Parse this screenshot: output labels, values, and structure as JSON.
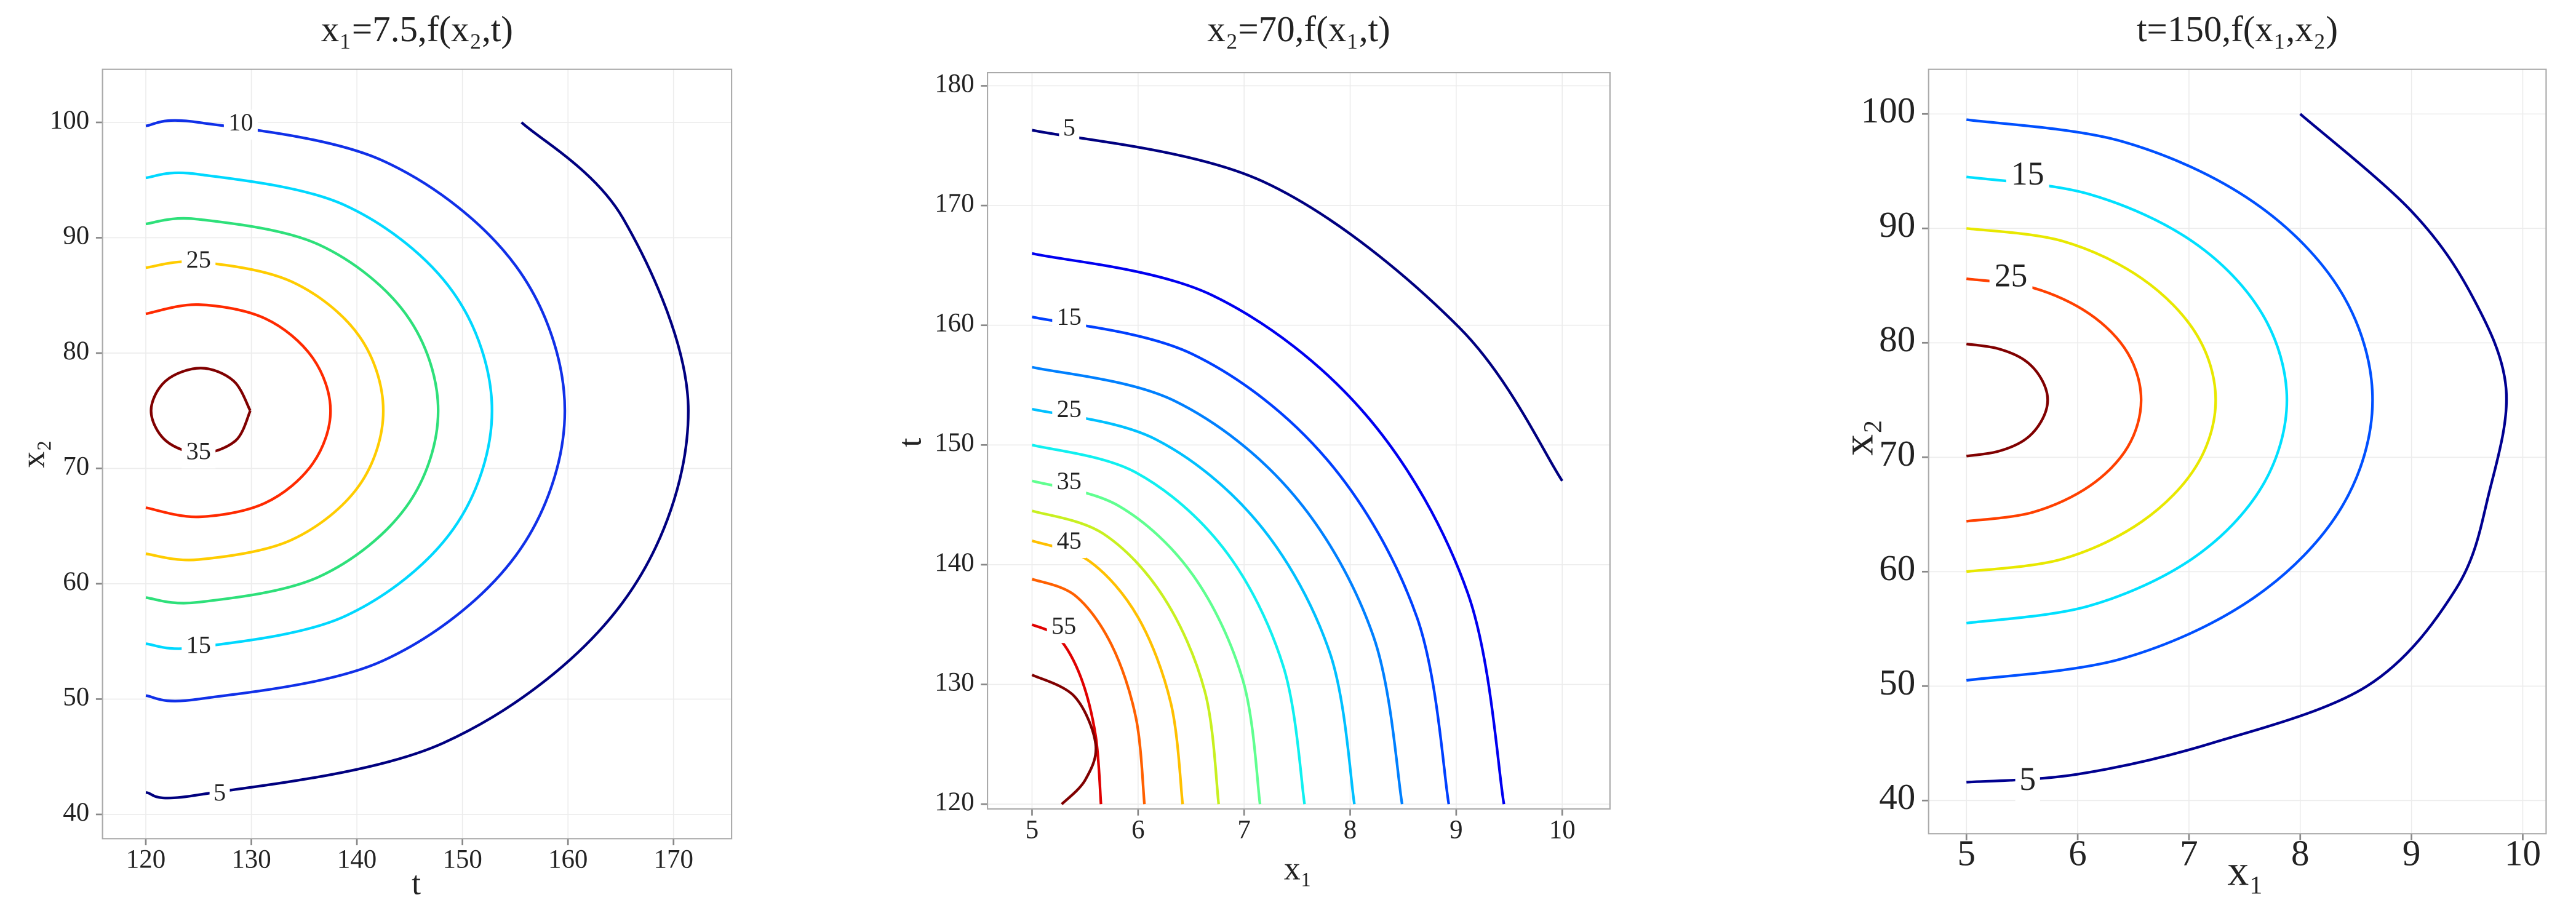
{
  "chart_data": [
    {
      "type": "contour",
      "title": "x₁=7.5,f(x₂,t)",
      "xlabel": "t",
      "ylabel": "x₂",
      "xlim": [
        115.9,
        175.5
      ],
      "ylim": [
        37.9,
        104.6
      ],
      "xticks": [
        120,
        130,
        140,
        150,
        160,
        170
      ],
      "yticks": [
        40,
        50,
        60,
        70,
        80,
        90,
        100
      ],
      "grid": true,
      "series": [
        {
          "color": "#800000",
          "x": [
            129.9,
            128.3,
            125.2,
            121.9,
            120.5,
            121.9,
            125.2,
            128.5,
            129.9
          ],
          "y": [
            75,
            77.6,
            78.7,
            77.6,
            75,
            72.4,
            71.3,
            72.4,
            75
          ]
        },
        {
          "color": "#ff2a00",
          "x": [
            120,
            125,
            131.3,
            135.8,
            137.5,
            135.8,
            131.3,
            125,
            120
          ],
          "y": [
            83.4,
            84.2,
            83.0,
            79.6,
            75,
            70.4,
            67.0,
            65.8,
            66.6
          ]
        },
        {
          "color": "#ffcc00",
          "x": [
            120,
            125,
            133.8,
            140.2,
            142.5,
            140.2,
            133.8,
            125,
            120
          ],
          "y": [
            87.4,
            87.9,
            86.2,
            81.5,
            75,
            68.5,
            63.8,
            62.1,
            62.6
          ]
        },
        {
          "color": "#2ee07a",
          "x": [
            120,
            125,
            136.4,
            144.7,
            147.7,
            144.7,
            136.4,
            125,
            120
          ],
          "y": [
            91.2,
            91.6,
            89.4,
            83.3,
            75,
            66.7,
            60.6,
            58.4,
            58.8
          ]
        },
        {
          "color": "#00d8ff",
          "x": [
            120,
            125,
            138.9,
            149.1,
            152.8,
            149.1,
            138.9,
            125,
            120
          ],
          "y": [
            95.2,
            95.5,
            92.8,
            85.3,
            75,
            64.7,
            57.2,
            54.5,
            54.8
          ]
        },
        {
          "color": "#1030e8",
          "x": [
            120,
            125,
            142.4,
            155.1,
            159.7,
            155.1,
            142.4,
            125,
            120
          ],
          "y": [
            99.7,
            100,
            96.7,
            87.5,
            75,
            62.5,
            53.3,
            50,
            50.3
          ]
        },
        {
          "color": "#00007f",
          "x": [
            155.6,
            165.2,
            171.4,
            165.2,
            148.2,
            125,
            120
          ],
          "y": [
            100,
            91.7,
            75,
            58.4,
            46.2,
            41.7,
            41.9
          ]
        }
      ],
      "labels": [
        {
          "text": 10,
          "x": 129,
          "y": 99.8
        },
        {
          "text": 25,
          "x": 125,
          "y": 87.9
        },
        {
          "text": 35,
          "x": 125,
          "y": 71.3
        },
        {
          "text": 15,
          "x": 125,
          "y": 54.5
        },
        {
          "text": 5,
          "x": 127,
          "y": 41.7
        }
      ]
    },
    {
      "type": "contour",
      "title": "x₂=70,f(x₁,t)",
      "xlabel": "x₁",
      "ylabel": "t",
      "xlim": [
        4.58,
        10.45
      ],
      "ylim": [
        119.6,
        181.1
      ],
      "xticks": [
        5,
        6,
        7,
        8,
        9,
        10
      ],
      "yticks": [
        120,
        130,
        140,
        150,
        160,
        170,
        180
      ],
      "grid": true,
      "series": [
        {
          "color": "#000080",
          "x": [
            5,
            7.18,
            9.03,
            10
          ],
          "y": [
            176.3,
            172,
            159.8,
            147
          ]
        },
        {
          "color": "#0000f0",
          "x": [
            5,
            6.7,
            8.15,
            9.11,
            9.45
          ],
          "y": [
            166,
            162.5,
            152.5,
            137.6,
            120
          ]
        },
        {
          "color": "#0040ff",
          "x": [
            5,
            6.51,
            7.78,
            8.63,
            8.93
          ],
          "y": [
            160.7,
            157.6,
            148.8,
            135.6,
            120
          ]
        },
        {
          "color": "#0080ff",
          "x": [
            5,
            6.34,
            7.47,
            8.22,
            8.49
          ],
          "y": [
            156.5,
            153.7,
            145.8,
            134,
            120
          ]
        },
        {
          "color": "#00c0ff",
          "x": [
            5,
            6.16,
            7.15,
            7.81,
            8.04
          ],
          "y": [
            153,
            150.5,
            143.3,
            132.6,
            120
          ]
        },
        {
          "color": "#10f0f0",
          "x": [
            5,
            5.98,
            6.82,
            7.37,
            7.57
          ],
          "y": [
            150,
            147.7,
            141.2,
            131.5,
            120
          ]
        },
        {
          "color": "#60ff90",
          "x": [
            5,
            5.82,
            6.52,
            6.99,
            7.15
          ],
          "y": [
            147,
            144.9,
            139.1,
            130.3,
            120
          ]
        },
        {
          "color": "#c8f020",
          "x": [
            5,
            5.67,
            6.24,
            6.63,
            6.76
          ],
          "y": [
            144.5,
            142.6,
            137.3,
            129.4,
            120
          ]
        },
        {
          "color": "#ffc000",
          "x": [
            5,
            5.54,
            6.0,
            6.31,
            6.42
          ],
          "y": [
            142,
            140.3,
            135.6,
            128.4,
            120
          ]
        },
        {
          "color": "#ff6000",
          "x": [
            5,
            5.41,
            5.75,
            5.98,
            6.06
          ],
          "y": [
            138.8,
            137.4,
            133.3,
            127.2,
            120
          ]
        },
        {
          "color": "#e00000",
          "x": [
            5,
            5.25,
            5.46,
            5.6,
            5.65
          ],
          "y": [
            135,
            133.9,
            130.6,
            125.7,
            120
          ]
        },
        {
          "color": "#800000",
          "x": [
            5,
            5.4,
            5.6,
            5.5,
            5.28
          ],
          "y": [
            130.8,
            129,
            125,
            122,
            120
          ]
        }
      ],
      "labels": [
        {
          "text": 5,
          "x": 5.35,
          "y": 176.3
        },
        {
          "text": 15,
          "x": 5.35,
          "y": 160.5
        },
        {
          "text": 25,
          "x": 5.35,
          "y": 152.8
        },
        {
          "text": 35,
          "x": 5.35,
          "y": 146.8
        },
        {
          "text": 45,
          "x": 5.35,
          "y": 141.8
        },
        {
          "text": 55,
          "x": 5.3,
          "y": 134.7
        }
      ]
    },
    {
      "type": "contour",
      "title": "t=150,f(x₁,x₂)",
      "xlabel": "x₁",
      "ylabel": "x₂",
      "xlim": [
        4.66,
        10.21
      ],
      "ylim": [
        37.1,
        103.9
      ],
      "xticks": [
        5,
        6,
        7,
        8,
        9,
        10
      ],
      "yticks": [
        40,
        50,
        60,
        70,
        80,
        90,
        100
      ],
      "grid": true,
      "series": [
        {
          "color": "#800000",
          "x": [
            5,
            5.28,
            5.52,
            5.67,
            5.73,
            5.67,
            5.52,
            5.28,
            5
          ],
          "y": [
            79.9,
            79.5,
            78.5,
            76.9,
            75,
            73.1,
            71.5,
            70.5,
            70.1
          ]
        },
        {
          "color": "#ff4000",
          "x": [
            5,
            5.6,
            6.11,
            6.45,
            6.57,
            6.45,
            6.11,
            5.6,
            5
          ],
          "y": [
            85.6,
            84.8,
            82.5,
            79.1,
            75,
            70.9,
            67.5,
            65.2,
            64.4
          ]
        },
        {
          "color": "#e8e800",
          "x": [
            5,
            5.86,
            6.58,
            7.07,
            7.24,
            7.07,
            6.58,
            5.86,
            5
          ],
          "y": [
            90,
            88.9,
            85.6,
            80.7,
            75,
            69.3,
            64.4,
            61.1,
            60
          ]
        },
        {
          "color": "#00e0ff",
          "x": [
            5,
            6.1,
            7.04,
            7.66,
            7.88,
            7.66,
            7.04,
            6.1,
            5
          ],
          "y": [
            94.5,
            93,
            88.8,
            82.5,
            75,
            67.5,
            61.2,
            57,
            55.5
          ]
        },
        {
          "color": "#0050ff",
          "x": [
            5,
            6.4,
            7.58,
            8.37,
            8.65,
            8.37,
            7.58,
            6.4,
            5
          ],
          "y": [
            99.5,
            97.6,
            92.3,
            84.4,
            75,
            65.6,
            57.7,
            52.4,
            50.5
          ]
        },
        {
          "color": "#000090",
          "x": [
            8.0,
            9.0,
            9.55,
            9.85,
            9.7,
            9.4,
            8.6,
            7.2,
            6.0,
            5
          ],
          "y": [
            100,
            91.5,
            84,
            76,
            67,
            58.5,
            50,
            45,
            42.3,
            41.6
          ]
        }
      ],
      "labels": [
        {
          "text": 15,
          "x": 5.55,
          "y": 94.5
        },
        {
          "text": 25,
          "x": 5.4,
          "y": 85.6
        },
        {
          "text": 5,
          "x": 5.55,
          "y": 41.6
        }
      ]
    }
  ]
}
